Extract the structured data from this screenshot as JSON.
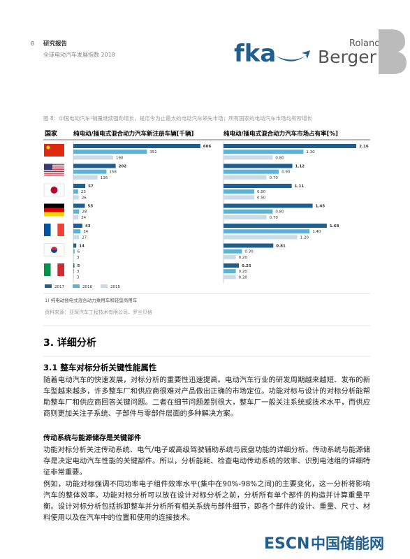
{
  "header": {
    "page_number": "8",
    "section": "研究报告",
    "subtitle": "全球电动汽车发展指数 2018",
    "logo_fka": "fka",
    "logo_rb_top": "Roland",
    "logo_rb_bottom": "Berger"
  },
  "figure": {
    "caption": "图 8：中国电动汽车¹销量继续强劲增长，是迄今为止最大的电动汽车领先市场；所有国家的电动汽车市场均有所增长",
    "country_header": "国家",
    "footnote": "1) 纯电动插电式混合动力乘用车和轻型商用车",
    "source": "资料来源：亚琛汽车工程技术有限公司、罗兰贝格"
  },
  "chart_data": [
    {
      "type": "bar",
      "title": "纯电动/插电式混合动力汽车新注册车辆[千辆]",
      "series": [
        {
          "name": "2017",
          "color": "#1f5f8f",
          "values": [
            606,
            202,
            57,
            55,
            43,
            14,
            5
          ]
        },
        {
          "name": "2016",
          "color": "#5bb4d8",
          "values": [
            351,
            158,
            23,
            28,
            34,
            6,
            3
          ]
        },
        {
          "name": "2015",
          "color": "#c8dbe6",
          "values": [
            190,
            116,
            26,
            24,
            27,
            3,
            3
          ]
        }
      ]
    },
    {
      "type": "bar",
      "title": "纯电动/插电式混合动力汽车市场占有率[%]",
      "series": [
        {
          "values": [
            2.16,
            1.12,
            1.11,
            1.45,
            1.68,
            0.81,
            0.25
          ],
          "value_labels": [
            "2.16",
            "1.12",
            "1.11",
            "1.45",
            "1.68",
            "0.81",
            "0.25"
          ]
        },
        {
          "values": [
            1.3,
            0.9,
            0.5,
            0.8,
            1.4,
            0.3,
            0.2
          ],
          "value_labels": [
            "1.30",
            "0.90",
            "0.50",
            "0.80",
            "1.40",
            "0.30",
            "0.20"
          ]
        },
        {
          "values": [
            0.8,
            0.7,
            0.5,
            0.7,
            1.2,
            0.2,
            0.2
          ],
          "value_labels": [
            "0.80",
            "0.70",
            "0.50",
            "0.70",
            "1.20",
            "0.20",
            "0.20"
          ]
        }
      ]
    }
  ],
  "body": {
    "section_title": "3.  详细分析",
    "subsection_title": "3.1  整车对标分析关键性能属性",
    "paragraph_1": "随着电动汽车的快速发展，对标分析的重要性迅速提高。电动汽车行业的研发周期越来越短、发布的新车型越来越多，许多整车厂和供应商很难对产品做出正确的市场定位。功能对标与设计的对标分析能帮助整车厂和供应商回答关键问题。二者在细节问题差别很大，整车厂一般关注系统或技术水平，而供应商则更加关注子系统、子部件与零部件层面的多种解决方案。",
    "subheading": "传动系统与能源储存是关键部件",
    "paragraph_2": "功能对标分析关注传动系统、电气/电子或高级驾驶辅助系统与底盘功能的详细分析。传动系统与能源储存是决定电动汽车性能的关键部件。所以，分析能耗、检查电动传动系统的效率、识别电池组的详细特征非常重要。",
    "paragraph_3": "例如，功能对标强调不同功率电子组件效率水平(集中在90%-98%之间)的主要变化，这一分析将影响汽车的整体效率。功能对标分析可以放在设计对标分析之前，分析所有单个部件的构造并计算重量平衡。设计对标分析包括拆卸整车并分析所有相关系统与部件细节，即各个部件的设计、重量、尺寸、材料使用以及在汽车中的位置和使用的连接技术。"
  },
  "watermark": {
    "brand": "ESCN",
    "name": "中国储能网"
  }
}
